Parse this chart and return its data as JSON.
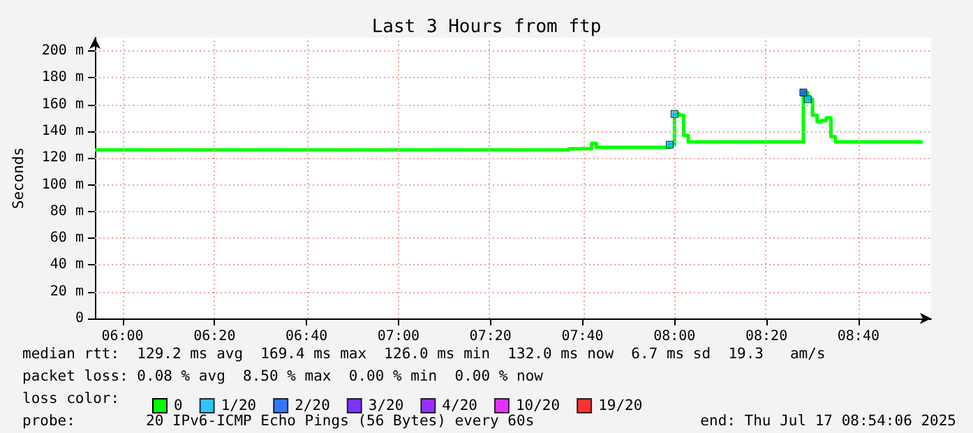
{
  "chart_data": {
    "type": "step",
    "title": "Last 3 Hours from ftp",
    "ylabel": "Seconds",
    "xlim": [
      5.9,
      8.93
    ],
    "xticks": [
      {
        "value": 6,
        "label": "06:00"
      },
      {
        "value": 6.333333,
        "label": "06:20"
      },
      {
        "value": 6.666667,
        "label": "06:40"
      },
      {
        "value": 7,
        "label": "07:00"
      },
      {
        "value": 7.333333,
        "label": "07:20"
      },
      {
        "value": 7.666667,
        "label": "07:40"
      },
      {
        "value": 8,
        "label": "08:00"
      },
      {
        "value": 8.333333,
        "label": "08:20"
      },
      {
        "value": 8.666667,
        "label": "08:40"
      }
    ],
    "ylim": [
      0,
      210
    ],
    "yticks": [
      0,
      {
        "value": 20,
        "label": "20 m"
      },
      {
        "value": 40,
        "label": "40 m"
      },
      {
        "value": 60,
        "label": "60 m"
      },
      {
        "value": 80,
        "label": "80 m"
      },
      {
        "value": 100,
        "label": "100 m"
      },
      {
        "value": 120,
        "label": "120 m"
      },
      {
        "value": 140,
        "label": "140 m"
      },
      {
        "value": 160,
        "label": "160 m"
      },
      {
        "value": 180,
        "label": "180 m"
      },
      {
        "value": 200,
        "label": "200 m"
      }
    ],
    "grid": true,
    "legend": "bottom",
    "legend_title": "loss color:",
    "series": [
      {
        "name": "0",
        "color": "#00ff00",
        "x": [
          5.9,
          7.617,
          7.7,
          7.717,
          7.983,
          8.0,
          8.017,
          8.033,
          8.05,
          8.467,
          8.483,
          8.5,
          8.517,
          8.533,
          8.55,
          8.567,
          8.583,
          8.9
        ],
        "values": [
          126,
          127,
          131,
          128,
          130,
          153,
          152,
          137,
          132,
          169,
          164,
          152,
          147,
          148,
          150,
          136,
          132,
          132
        ]
      },
      {
        "name": "1/20",
        "color": "#00b8ff",
        "type": "scatter",
        "x": [
          7.983,
          8.0,
          8.483
        ],
        "values": [
          130,
          153,
          164
        ]
      },
      {
        "name": "2/20",
        "color": "#0059ff",
        "type": "scatter",
        "x": [
          8.467
        ],
        "values": [
          169
        ]
      },
      {
        "name": "3/20",
        "color": "#5e00ff",
        "type": "scatter"
      },
      {
        "name": "4/20",
        "color": "#7e00ff",
        "type": "scatter"
      },
      {
        "name": "10/20",
        "color": "#dd00ff",
        "type": "scatter"
      },
      {
        "name": "19/20",
        "color": "#ff0000",
        "type": "scatter"
      }
    ],
    "annotations": [
      "median rtt:  129.2 ms avg  169.4 ms max  126.0 ms min  132.0 ms now  6.7 ms sd  19.3   am/s",
      "packet loss: 0.08 % avg  8.50 % max  0.00 % min  0.00 % now",
      "probe:        20 IPv6-ICMP Echo Pings (56 Bytes) every 60s",
      "end: Thu Jul 17 08:54:06 2025"
    ]
  }
}
